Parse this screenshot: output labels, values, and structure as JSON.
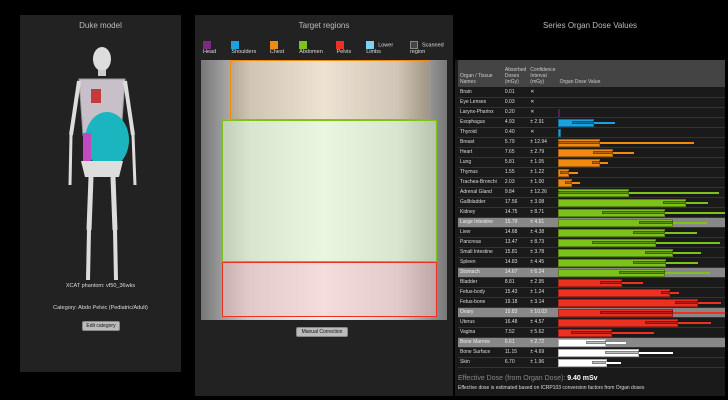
{
  "left": {
    "title": "Duke model",
    "phantom": "XCAT phantom: vf50_36wks",
    "category": "Category: Abdo Pelvic (Pediatric/Adult)",
    "edit_button": "Edit category"
  },
  "mid": {
    "title": "Target regions",
    "manual_button": "Manual Correction",
    "legend": [
      {
        "label": "Head",
        "color": "#7b2a7e"
      },
      {
        "label": "Shoulders",
        "color": "#1aa3e0"
      },
      {
        "label": "Chest",
        "color": "#f08a10"
      },
      {
        "label": "Abdomen",
        "color": "#7cc21a"
      },
      {
        "label": "Pelvis",
        "color": "#ee3020"
      },
      {
        "label": "Lower Limbs",
        "color": "#7fd0f5"
      },
      {
        "label": "Scanned region",
        "color": "#444444"
      }
    ]
  },
  "right": {
    "title": "Series Organ Dose Values",
    "headers": {
      "organ": "Organ / Tissue Names",
      "dose": "Absorbed Doses (mGy)",
      "ci": "Confidence Interval (mGy)",
      "bar": "Organ Dose Value"
    },
    "rows": [
      {
        "organ": "Brain",
        "dose": "0.01",
        "ci": "✕",
        "color": "#7b2a7e"
      },
      {
        "organ": "Eye Lenses",
        "dose": "0.03",
        "ci": "✕",
        "color": "#7b2a7e"
      },
      {
        "organ": "Larynx-Pharinx",
        "dose": "0.20",
        "ci": "✕",
        "color": "#7b2a7e"
      },
      {
        "organ": "Esophagus",
        "dose": "4.93",
        "ci": "± 2.91",
        "color": "#1aa3e0"
      },
      {
        "organ": "Thyroid",
        "dose": "0.40",
        "ci": "✕",
        "color": "#1aa3e0"
      },
      {
        "organ": "Breast",
        "dose": "5.79",
        "ci": "± 12.94",
        "color": "#f08a10"
      },
      {
        "organ": "Heart",
        "dose": "7.65",
        "ci": "± 2.79",
        "color": "#f08a10"
      },
      {
        "organ": "Lung",
        "dose": "5.81",
        "ci": "± 1.05",
        "color": "#f08a10"
      },
      {
        "organ": "Thymus",
        "dose": "1.55",
        "ci": "± 1.22",
        "color": "#f08a10"
      },
      {
        "organ": "Trachea-Bronchi",
        "dose": "2.03",
        "ci": "± 1.00",
        "color": "#f08a10"
      },
      {
        "organ": "Adrenal Gland",
        "dose": "9.84",
        "ci": "± 12.26",
        "color": "#7cc21a"
      },
      {
        "organ": "Gallbladder",
        "dose": "17.56",
        "ci": "± 3.08",
        "color": "#7cc21a"
      },
      {
        "organ": "Kidney",
        "dose": "14.75",
        "ci": "± 8.71",
        "color": "#7cc21a"
      },
      {
        "organ": "Large Intestine",
        "dose": "15.79",
        "ci": "± 4.61",
        "color": "#7cc21a",
        "highlight": true
      },
      {
        "organ": "Liver",
        "dose": "14.68",
        "ci": "± 4.38",
        "color": "#7cc21a"
      },
      {
        "organ": "Pancreas",
        "dose": "13.47",
        "ci": "± 8.73",
        "color": "#7cc21a"
      },
      {
        "organ": "Small Intestine",
        "dose": "15.81",
        "ci": "± 3.78",
        "color": "#7cc21a"
      },
      {
        "organ": "Spleen",
        "dose": "14.83",
        "ci": "± 4.45",
        "color": "#7cc21a"
      },
      {
        "organ": "Stomach",
        "dose": "14.67",
        "ci": "± 6.24",
        "color": "#7cc21a",
        "highlight": true
      },
      {
        "organ": "Bladder",
        "dose": "8.81",
        "ci": "± 2.95",
        "color": "#ee3020"
      },
      {
        "organ": "Fetus-body",
        "dose": "15.43",
        "ci": "± 1.24",
        "color": "#ee3020"
      },
      {
        "organ": "Fetus-bone",
        "dose": "19.18",
        "ci": "± 3.14",
        "color": "#ee3020"
      },
      {
        "organ": "Ovary",
        "dose": "15.83",
        "ci": "± 10.03",
        "color": "#ee3020",
        "highlight": true
      },
      {
        "organ": "Uterus",
        "dose": "16.48",
        "ci": "± 4.57",
        "color": "#ee3020"
      },
      {
        "organ": "Vagina",
        "dose": "7.52",
        "ci": "± 5.62",
        "color": "#ee3020"
      },
      {
        "organ": "Bone Marrow",
        "dose": "6.61",
        "ci": "± 2.72",
        "color": "#ffffff",
        "highlight": true
      },
      {
        "organ": "Bone Surface",
        "dose": "11.15",
        "ci": "± 4.69",
        "color": "#ffffff"
      },
      {
        "organ": "Skin",
        "dose": "6.70",
        "ci": "± 1.96",
        "color": "#ffffff"
      }
    ],
    "effective_label": "Effective Dose (from Organ Dose):",
    "effective_value": "9.40 mSv",
    "effective_note": "Effective dose is estimated based on ICRP103 conversion factors from Organ doses"
  }
}
